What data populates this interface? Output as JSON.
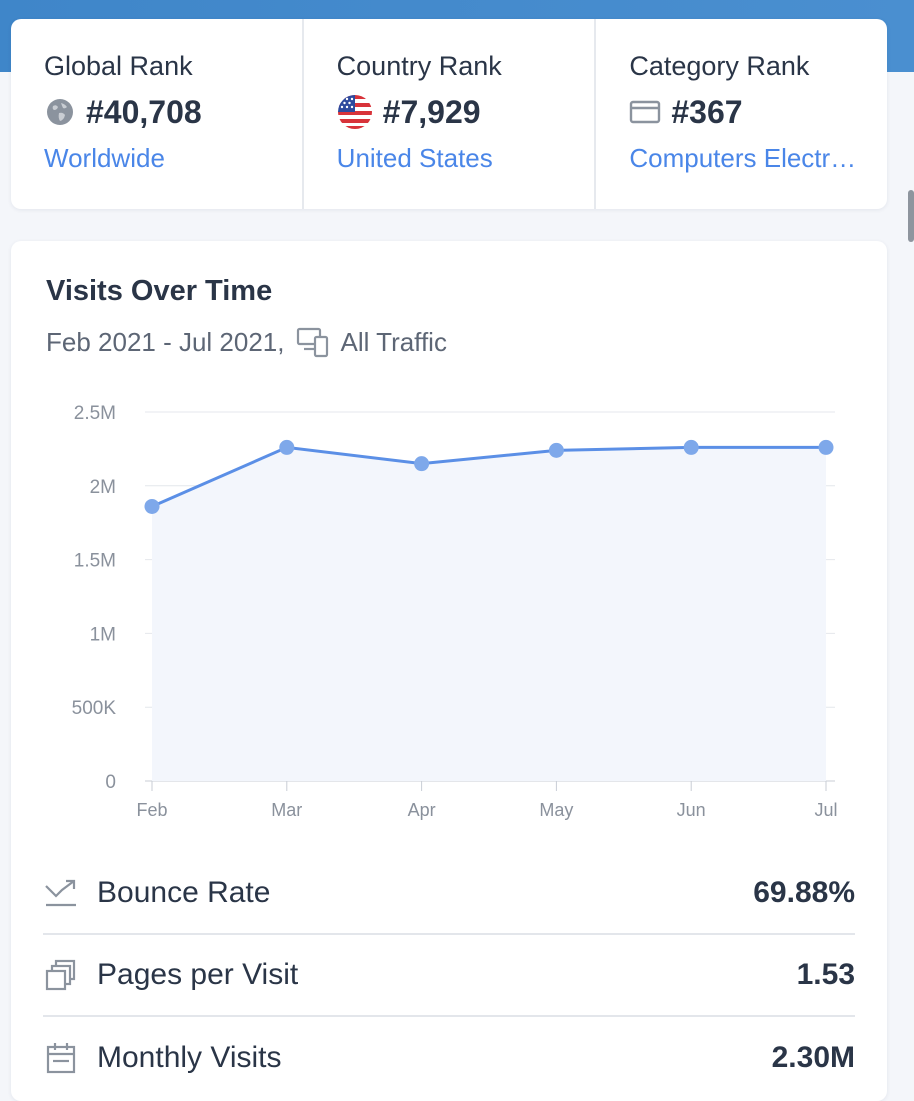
{
  "ranks": [
    {
      "label": "Global Rank",
      "value": "#40,708",
      "link": "Worldwide",
      "icon": "globe-icon"
    },
    {
      "label": "Country Rank",
      "value": "#7,929",
      "link": "United States",
      "icon": "us-flag-icon"
    },
    {
      "label": "Category Rank",
      "value": "#367",
      "link": "Computers Electr…",
      "icon": "category-icon"
    }
  ],
  "visits": {
    "title": "Visits Over Time",
    "period": "Feb 2021 - Jul 2021,",
    "traffic": "All Traffic",
    "device_icon": "devices-icon"
  },
  "chart_data": {
    "type": "area",
    "categories": [
      "Feb",
      "Mar",
      "Apr",
      "May",
      "Jun",
      "Jul"
    ],
    "series": [
      {
        "values": [
          1860000,
          2260000,
          2150000,
          2240000,
          2260000,
          2260000
        ]
      }
    ],
    "yticks": [
      "0",
      "500K",
      "1M",
      "1.5M",
      "2M",
      "2.5M"
    ],
    "ylim": [
      0,
      2500000
    ],
    "grid": true,
    "line_color": "#5b8fe6",
    "point_color": "#7ea8ea",
    "fill_color": "#f3f6fc"
  },
  "metrics": [
    {
      "label": "Bounce Rate",
      "value": "69.88%",
      "icon": "bounce-icon"
    },
    {
      "label": "Pages per Visit",
      "value": "1.53",
      "icon": "pages-icon"
    },
    {
      "label": "Monthly Visits",
      "value": "2.30M",
      "icon": "calendar-icon"
    }
  ],
  "colors": {
    "accent": "#4a86e8",
    "header_band": "#4a8fd0",
    "text": "#2a3547"
  }
}
